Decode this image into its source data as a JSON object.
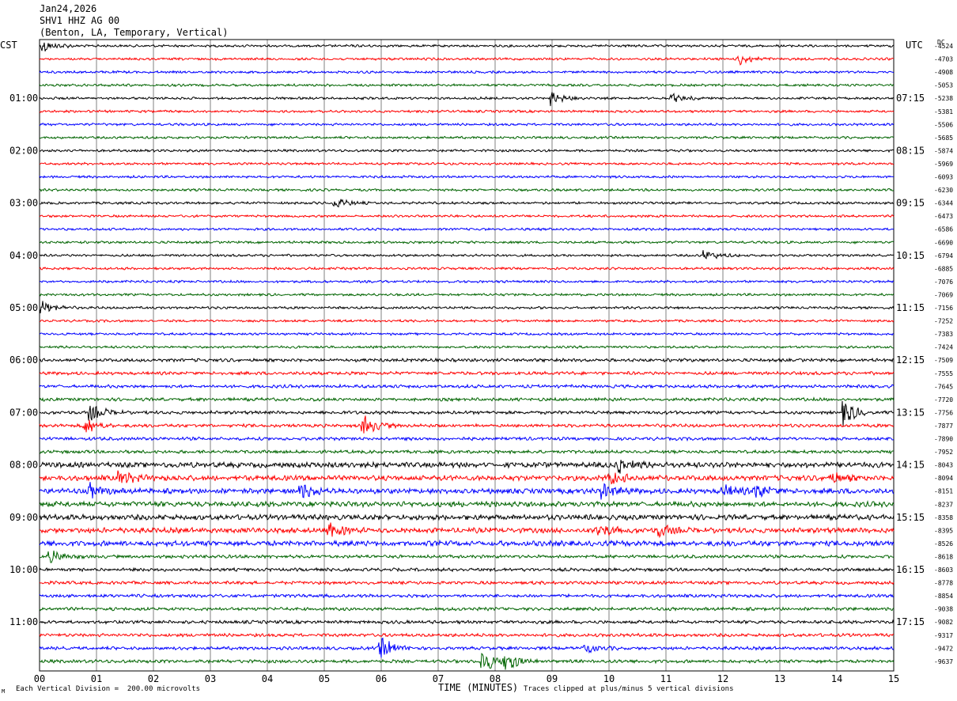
{
  "header": {
    "date": "Jan24,2026",
    "station": "SHV1 HHZ AG 00",
    "location": "(Benton, LA, Temporary, Vertical)"
  },
  "left_timezone": "CST",
  "right_timezone": "UTC",
  "footer": {
    "scale_note": "Each Vertical Division =  200.00 microvolts",
    "axis_title": "TIME (MINUTES)",
    "clip_note": "Traces clipped at plus/minus 5 vertical divisions",
    "small_mark": "M"
  },
  "colors": {
    "trace_cycle": [
      "#000000",
      "#ff0000",
      "#0000ff",
      "#006400"
    ],
    "gridline": "#808080",
    "frame": "#000000"
  },
  "chart_data": {
    "type": "line",
    "description_type": "helicorder",
    "x_label": "TIME (MINUTES)",
    "x_ticks": [
      "00",
      "01",
      "02",
      "03",
      "04",
      "05",
      "06",
      "07",
      "08",
      "09",
      "10",
      "11",
      "12",
      "13",
      "14",
      "15"
    ],
    "xlim": [
      0,
      15
    ],
    "trace_count": 48,
    "minutes_per_trace": 15,
    "left_time_labels": [
      "01:00",
      "02:00",
      "03:00",
      "04:00",
      "05:00",
      "06:00",
      "07:00",
      "08:00",
      "09:00",
      "10:00",
      "11:00"
    ],
    "right_time_labels": [
      "07:15",
      "08:15",
      "09:15",
      "10:15",
      "11:15",
      "12:15",
      "13:15",
      "14:15",
      "15:15",
      "16:15",
      "17:15"
    ],
    "dc_header": "DC",
    "dc_offsets": [
      "-4524",
      "-4703",
      "-4908",
      "-5053",
      "-5238",
      "-5381",
      "-5506",
      "-5685",
      "-5874",
      "-5969",
      "-6093",
      "-6230",
      "-6344",
      "-6473",
      "-6586",
      "-6690",
      "-6794",
      "-6885",
      "-7076",
      "-7069",
      "-7156",
      "-7252",
      "-7383",
      "-7424",
      "-7509",
      "-7555",
      "-7645",
      "-7720",
      "-7756",
      "-7877",
      "-7890",
      "-7952",
      "-8043",
      "-8094",
      "-8151",
      "-8237",
      "-8358",
      "-8395",
      "-8526",
      "-8618",
      "-8603",
      "-8778",
      "-8854",
      "-9038",
      "-9082",
      "-9317",
      "-9472",
      "-9637"
    ],
    "events": [
      {
        "trace": 0,
        "minute": 0.05,
        "amplitude": 3
      },
      {
        "trace": 1,
        "minute": 12.3,
        "amplitude": 2.5
      },
      {
        "trace": 4,
        "minute": 9.0,
        "amplitude": 3
      },
      {
        "trace": 4,
        "minute": 11.1,
        "amplitude": 2
      },
      {
        "trace": 12,
        "minute": 5.2,
        "amplitude": 2
      },
      {
        "trace": 16,
        "minute": 11.7,
        "amplitude": 2
      },
      {
        "trace": 20,
        "minute": 0.05,
        "amplitude": 3
      },
      {
        "trace": 28,
        "minute": 14.1,
        "amplitude": 6
      },
      {
        "trace": 28,
        "minute": 0.9,
        "amplitude": 4
      },
      {
        "trace": 29,
        "minute": 0.8,
        "amplitude": 4
      },
      {
        "trace": 29,
        "minute": 5.7,
        "amplitude": 4
      },
      {
        "trace": 32,
        "minute": 10.2,
        "amplitude": 3
      },
      {
        "trace": 33,
        "minute": 1.4,
        "amplitude": 3
      },
      {
        "trace": 33,
        "minute": 10.0,
        "amplitude": 3
      },
      {
        "trace": 33,
        "minute": 13.9,
        "amplitude": 2.5
      },
      {
        "trace": 34,
        "minute": 0.9,
        "amplitude": 3
      },
      {
        "trace": 34,
        "minute": 4.6,
        "amplitude": 3
      },
      {
        "trace": 34,
        "minute": 9.9,
        "amplitude": 3
      },
      {
        "trace": 34,
        "minute": 12.0,
        "amplitude": 3
      },
      {
        "trace": 34,
        "minute": 12.6,
        "amplitude": 3
      },
      {
        "trace": 37,
        "minute": 5.1,
        "amplitude": 3
      },
      {
        "trace": 37,
        "minute": 9.8,
        "amplitude": 2.5
      },
      {
        "trace": 37,
        "minute": 10.9,
        "amplitude": 2.5
      },
      {
        "trace": 39,
        "minute": 0.2,
        "amplitude": 3
      },
      {
        "trace": 46,
        "minute": 6.0,
        "amplitude": 5
      },
      {
        "trace": 46,
        "minute": 9.6,
        "amplitude": 2
      },
      {
        "trace": 47,
        "minute": 7.8,
        "amplitude": 5
      },
      {
        "trace": 47,
        "minute": 8.2,
        "amplitude": 4
      }
    ]
  }
}
